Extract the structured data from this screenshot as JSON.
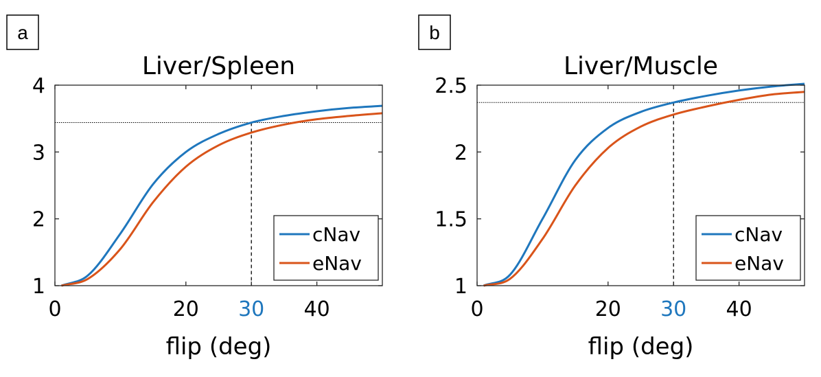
{
  "colors": {
    "cNav": "#1f77bd",
    "eNav": "#d9541a",
    "highlight": "#1f77bd"
  },
  "chart_data": [
    {
      "panel_label": "a",
      "type": "line",
      "title": "Liver/Spleen",
      "xlabel": "flip (deg)",
      "ylabel": "",
      "xlim": [
        0,
        50
      ],
      "ylim": [
        1,
        4
      ],
      "xticks": [
        0,
        20,
        30,
        40
      ],
      "xtick_labels": [
        "0",
        "20",
        "30",
        "40"
      ],
      "highlight_xtick": "30",
      "yticks": [
        1,
        2,
        3,
        4
      ],
      "ytick_labels": [
        "1",
        "2",
        "3",
        "4"
      ],
      "legend": [
        "cNav",
        "eNav"
      ],
      "legend_position": "bottom-right",
      "reference_lines": {
        "horizontal_y": 3.44,
        "vertical_x": 30
      },
      "series": [
        {
          "name": "cNav",
          "x": [
            1,
            5,
            10,
            15,
            20,
            25,
            30,
            35,
            40,
            45,
            50
          ],
          "values": [
            1.0,
            1.15,
            1.78,
            2.52,
            3.0,
            3.27,
            3.44,
            3.54,
            3.61,
            3.66,
            3.69
          ]
        },
        {
          "name": "eNav",
          "x": [
            1,
            5,
            10,
            15,
            20,
            25,
            30,
            35,
            40,
            45,
            50
          ],
          "values": [
            1.0,
            1.1,
            1.55,
            2.25,
            2.78,
            3.1,
            3.29,
            3.41,
            3.49,
            3.54,
            3.58
          ]
        }
      ]
    },
    {
      "panel_label": "b",
      "type": "line",
      "title": "Liver/Muscle",
      "xlabel": "flip (deg)",
      "ylabel": "",
      "xlim": [
        0,
        50
      ],
      "ylim": [
        1,
        2.5
      ],
      "xticks": [
        0,
        20,
        30,
        40
      ],
      "xtick_labels": [
        "0",
        "20",
        "30",
        "40"
      ],
      "highlight_xtick": "30",
      "yticks": [
        1,
        1.5,
        2,
        2.5
      ],
      "ytick_labels": [
        "1",
        "1.5",
        "2",
        "2.5"
      ],
      "legend": [
        "cNav",
        "eNav"
      ],
      "legend_position": "bottom-right",
      "reference_lines": {
        "horizontal_y": 2.37,
        "vertical_x": 30
      },
      "series": [
        {
          "name": "cNav",
          "x": [
            1,
            5,
            10,
            15,
            20,
            25,
            30,
            35,
            40,
            45,
            50
          ],
          "values": [
            1.0,
            1.08,
            1.5,
            1.94,
            2.18,
            2.3,
            2.37,
            2.42,
            2.46,
            2.49,
            2.51
          ]
        },
        {
          "name": "eNav",
          "x": [
            1,
            5,
            10,
            15,
            20,
            25,
            30,
            35,
            40,
            45,
            50
          ],
          "values": [
            1.0,
            1.05,
            1.35,
            1.75,
            2.03,
            2.19,
            2.28,
            2.34,
            2.39,
            2.43,
            2.45
          ]
        }
      ]
    }
  ]
}
